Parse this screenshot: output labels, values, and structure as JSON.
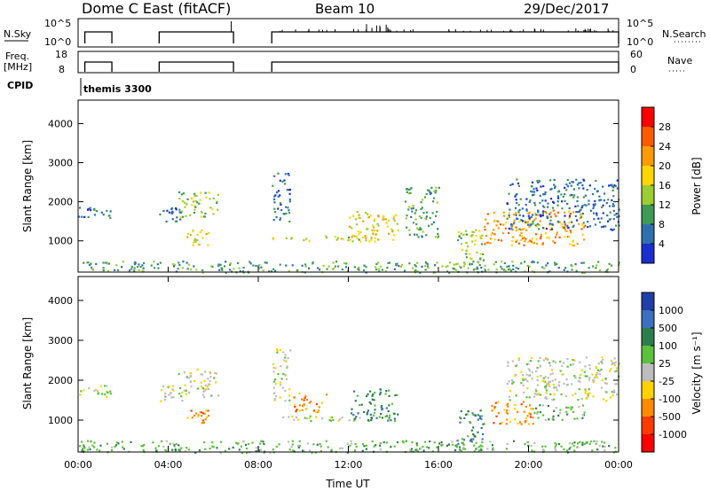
{
  "header": {
    "title": "Dome C East (fitACF)",
    "beam": "Beam 10",
    "date": "29/Dec/2017"
  },
  "panels": {
    "nsky": {
      "left_label": "N.Sky",
      "left_ticks": [
        "10^5",
        "10^0"
      ],
      "right_label": "N.Search",
      "right_ticks": [
        "10^5",
        "10^0"
      ]
    },
    "freq": {
      "left_label_line1": "Freq.",
      "left_label_line2": "[MHz]",
      "left_ticks": [
        "18",
        "8"
      ],
      "right_label": "Nave",
      "right_ticks": [
        "60",
        "0"
      ]
    },
    "cpid": {
      "label": "CPID",
      "value": "themis 3300"
    }
  },
  "colorbars": {
    "power": {
      "label": "Power [dB]",
      "ticks": [
        "28",
        "24",
        "20",
        "16",
        "12",
        "8",
        "4"
      ],
      "colors": [
        "#ff0000",
        "#ff5a00",
        "#ff9a00",
        "#ffd600",
        "#9ccd32",
        "#3e9a56",
        "#2f6fb0",
        "#1a2fd0"
      ]
    },
    "velocity": {
      "label": "Velocity [m s⁻¹]",
      "ticks": [
        "1000",
        "500",
        "100",
        "25",
        "-25",
        "-100",
        "-500",
        "-1000"
      ],
      "colors": [
        "#1f3fa8",
        "#3d6fc0",
        "#2e7d4e",
        "#5cc13d",
        "#bdbdbd",
        "#ffd200",
        "#ff8a00",
        "#ff3a00",
        "#ff0000"
      ]
    }
  },
  "chart_data": [
    {
      "type": "line",
      "title": "N.Sky / N.Search",
      "xlabel": "",
      "ylabel": "N.Sky",
      "x_range_hours": [
        0,
        24
      ],
      "operating_intervals_hours": [
        [
          0.3,
          1.5
        ],
        [
          3.6,
          6.9
        ],
        [
          8.6,
          24.0
        ]
      ],
      "y_scale": "log",
      "ylim_exponents": [
        0,
        5
      ]
    },
    {
      "type": "line",
      "title": "Freq / Nave",
      "ylabel": "Freq. [MHz]",
      "ylim": [
        8,
        18
      ],
      "right_ylabel": "Nave",
      "right_ylim": [
        0,
        60
      ],
      "operating_intervals_hours": [
        [
          0.3,
          1.5
        ],
        [
          3.6,
          6.9
        ],
        [
          8.6,
          24.0
        ]
      ],
      "approx_frequency_mhz": 11
    },
    {
      "type": "heatmap",
      "ylabel": "Slant Range [km]",
      "xlabel": "",
      "yticks": [
        "1000",
        "2000",
        "3000",
        "4000"
      ],
      "ylim": [
        200,
        4600
      ],
      "x_range_hours": [
        0,
        24
      ],
      "colorbar": "Power [dB]",
      "regions": [
        {
          "t": [
            0.0,
            1.5
          ],
          "r": [
            1600,
            1900
          ],
          "level": 1
        },
        {
          "t": [
            3.6,
            4.6
          ],
          "r": [
            1500,
            1900
          ],
          "level": 1
        },
        {
          "t": [
            4.4,
            6.2
          ],
          "r": [
            1600,
            2300
          ],
          "level": 3
        },
        {
          "t": [
            4.8,
            5.8
          ],
          "r": [
            900,
            1300
          ],
          "level": 4
        },
        {
          "t": [
            8.6,
            9.4
          ],
          "r": [
            1500,
            2800
          ],
          "level": 1
        },
        {
          "t": [
            8.6,
            12.5
          ],
          "r": [
            1000,
            1150
          ],
          "level": 3
        },
        {
          "t": [
            12.0,
            14.2
          ],
          "r": [
            1000,
            1800
          ],
          "level": 4
        },
        {
          "t": [
            14.5,
            16.0
          ],
          "r": [
            1100,
            2400
          ],
          "level": 2
        },
        {
          "t": [
            16.8,
            18.0
          ],
          "r": [
            300,
            1300
          ],
          "level": 3
        },
        {
          "t": [
            18.0,
            22.5
          ],
          "r": [
            900,
            1800
          ],
          "level": 5
        },
        {
          "t": [
            19.0,
            24.0
          ],
          "r": [
            1300,
            2600
          ],
          "level": 1
        },
        {
          "t": [
            0.0,
            24.0
          ],
          "r": [
            200,
            500
          ],
          "level": 2
        }
      ]
    },
    {
      "type": "heatmap",
      "ylabel": "Slant Range [km]",
      "xlabel": "Time UT",
      "yticks": [
        "1000",
        "2000",
        "3000",
        "4000"
      ],
      "xticks": [
        "00:00",
        "04:00",
        "08:00",
        "12:00",
        "16:00",
        "20:00",
        "00:00"
      ],
      "ylim": [
        200,
        4600
      ],
      "x_range_hours": [
        0,
        24
      ],
      "colorbar": "Velocity [m s⁻¹]",
      "regions": [
        {
          "t": [
            0.0,
            1.5
          ],
          "r": [
            1600,
            1900
          ],
          "class": 4
        },
        {
          "t": [
            3.6,
            4.6
          ],
          "r": [
            1500,
            1900
          ],
          "class": 4
        },
        {
          "t": [
            4.4,
            6.2
          ],
          "r": [
            1600,
            2300
          ],
          "class": 4
        },
        {
          "t": [
            4.8,
            5.8
          ],
          "r": [
            900,
            1300
          ],
          "class": 6
        },
        {
          "t": [
            8.6,
            9.4
          ],
          "r": [
            1500,
            2800
          ],
          "class": 4
        },
        {
          "t": [
            8.6,
            12.5
          ],
          "r": [
            1000,
            1150
          ],
          "class": 4
        },
        {
          "t": [
            9.4,
            11.0
          ],
          "r": [
            1200,
            1700
          ],
          "class": 6
        },
        {
          "t": [
            12.0,
            14.2
          ],
          "r": [
            1000,
            1800
          ],
          "class": 2
        },
        {
          "t": [
            16.8,
            18.0
          ],
          "r": [
            300,
            1300
          ],
          "class": 2
        },
        {
          "t": [
            18.3,
            20.2
          ],
          "r": [
            900,
            1500
          ],
          "class": 6
        },
        {
          "t": [
            20.2,
            22.5
          ],
          "r": [
            1000,
            1400
          ],
          "class": 3
        },
        {
          "t": [
            19.0,
            24.0
          ],
          "r": [
            1500,
            2600
          ],
          "class": 4
        },
        {
          "t": [
            0.0,
            24.0
          ],
          "r": [
            200,
            500
          ],
          "class": 3
        }
      ]
    }
  ]
}
